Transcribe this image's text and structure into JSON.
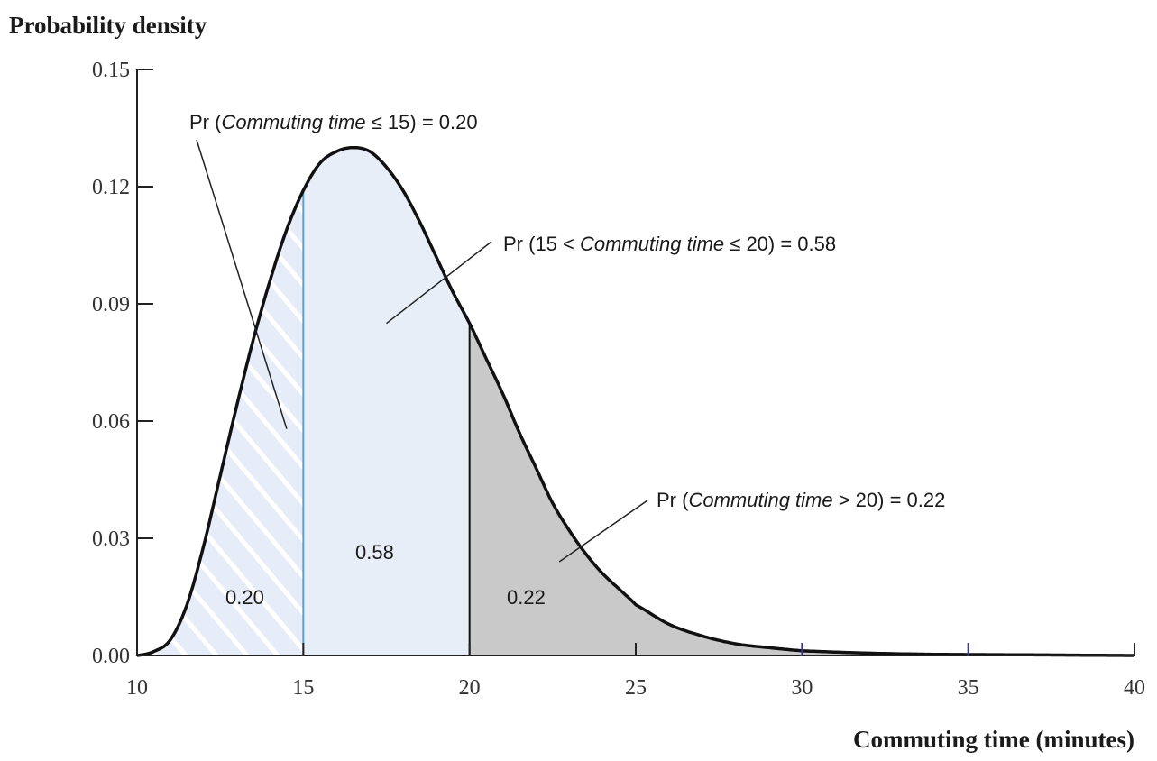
{
  "chart_data": {
    "type": "area",
    "ylabel": "Probability density",
    "xlabel": "Commuting time (minutes)",
    "xlim": [
      10,
      40
    ],
    "ylim": [
      0,
      0.15
    ],
    "x_ticks": [
      10,
      15,
      20,
      25,
      30,
      35,
      40
    ],
    "x_tick_labels": [
      "10",
      "15",
      "20",
      "25",
      "30",
      "35",
      "40"
    ],
    "y_ticks": [
      0,
      0.03,
      0.06,
      0.09,
      0.12,
      0.15
    ],
    "y_tick_labels": [
      "0.00",
      "0.03",
      "0.06",
      "0.09",
      "0.12",
      "0.15"
    ],
    "grid": false,
    "series": [
      {
        "x": [
          10,
          10.5,
          11,
          11.5,
          12,
          12.5,
          13,
          13.5,
          14,
          14.5,
          15,
          15.5,
          16,
          16.5,
          17,
          17.5,
          18,
          18.5,
          19,
          19.5,
          20,
          20.5,
          21,
          21.5,
          22,
          22.5,
          23,
          23.5,
          24,
          24.5,
          25,
          26,
          27,
          28,
          29,
          30,
          32,
          34,
          36,
          38,
          40
        ],
        "y": [
          0.0,
          0.001,
          0.004,
          0.013,
          0.028,
          0.046,
          0.064,
          0.081,
          0.096,
          0.109,
          0.119,
          0.126,
          0.129,
          0.13,
          0.129,
          0.125,
          0.119,
          0.111,
          0.102,
          0.093,
          0.085,
          0.076,
          0.067,
          0.057,
          0.048,
          0.039,
          0.032,
          0.026,
          0.021,
          0.017,
          0.013,
          0.008,
          0.005,
          0.003,
          0.002,
          0.0012,
          0.0006,
          0.0003,
          0.0002,
          0.0001,
          0.0
        ]
      }
    ],
    "regions": [
      {
        "from": 10,
        "to": 15,
        "label": "0.20",
        "fill": "hatched-light-blue"
      },
      {
        "from": 15,
        "to": 20,
        "label": "0.58",
        "fill": "#e8eef8"
      },
      {
        "from": 20,
        "to": 40,
        "label": "0.22",
        "fill": "#c9c9c9"
      }
    ],
    "annotations": [
      {
        "pre": "Pr (",
        "it": "Commuting time",
        "post": " ≤ 15) = 0.20"
      },
      {
        "pre": "Pr (15 < ",
        "it": "Commuting time",
        "post": " ≤ 20) = 0.58"
      },
      {
        "pre": "Pr (",
        "it": "Commuting time",
        "post": " > 20) = 0.22"
      }
    ],
    "colors": {
      "curve": "#111111",
      "region_low": "#e6ecf8",
      "region_mid": "#e8eef8",
      "region_high": "#c9c9c9",
      "hatch": "#ffffff"
    }
  }
}
